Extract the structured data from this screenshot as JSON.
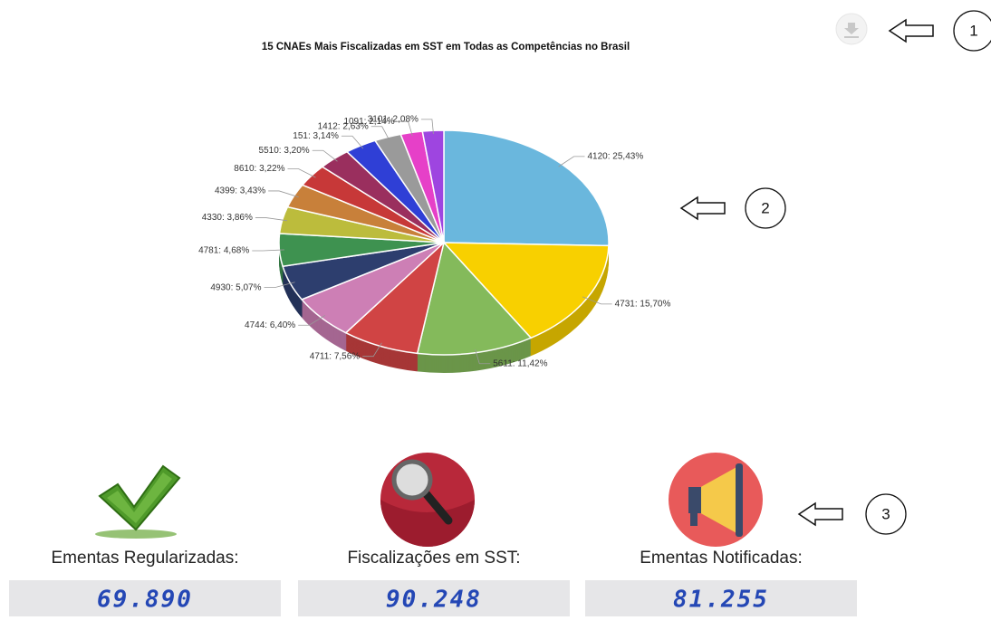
{
  "chart_data": {
    "type": "pie",
    "title": "15 CNAEs Mais Fiscalizadas em SST em Todas as Competências no Brasil",
    "values": [
      25.43,
      15.7,
      11.42,
      7.56,
      6.4,
      5.07,
      4.68,
      3.86,
      3.43,
      3.22,
      3.2,
      3.14,
      2.63,
      2.14,
      2.08
    ],
    "value_labels": [
      "4120: 25,43%",
      "4731: 15,70%",
      "5611: 11,42%",
      "4711: 7,56%",
      "4744: 6,40%",
      "4930: 5,07%",
      "4781: 4,68%",
      "4330: 3,86%",
      "4399: 3,43%",
      "8610: 3,22%",
      "5510: 3,20%",
      "151: 3,14%",
      "1412: 2,63%",
      "1091: 2,14%",
      "3101: 2,08%"
    ],
    "colors": [
      "#6ab7dd",
      "#f8d000",
      "#84ba5b",
      "#d04444",
      "#cd7fb5",
      "#2d3e6e",
      "#3e9250",
      "#bcbc3c",
      "#c8803a",
      "#c73838",
      "#9a2f5e",
      "#2f3fd6",
      "#9a9a9a",
      "#e640c8",
      "#9e45e0"
    ],
    "legend": false
  },
  "stats": [
    {
      "label": "Ementas Regularizadas:",
      "value": "69.890"
    },
    {
      "label": "Fiscalizações em SST:",
      "value": "90.248"
    },
    {
      "label": "Ementas Notificadas:",
      "value": "81.255"
    }
  ],
  "annotations": [
    "1",
    "2",
    "3"
  ]
}
